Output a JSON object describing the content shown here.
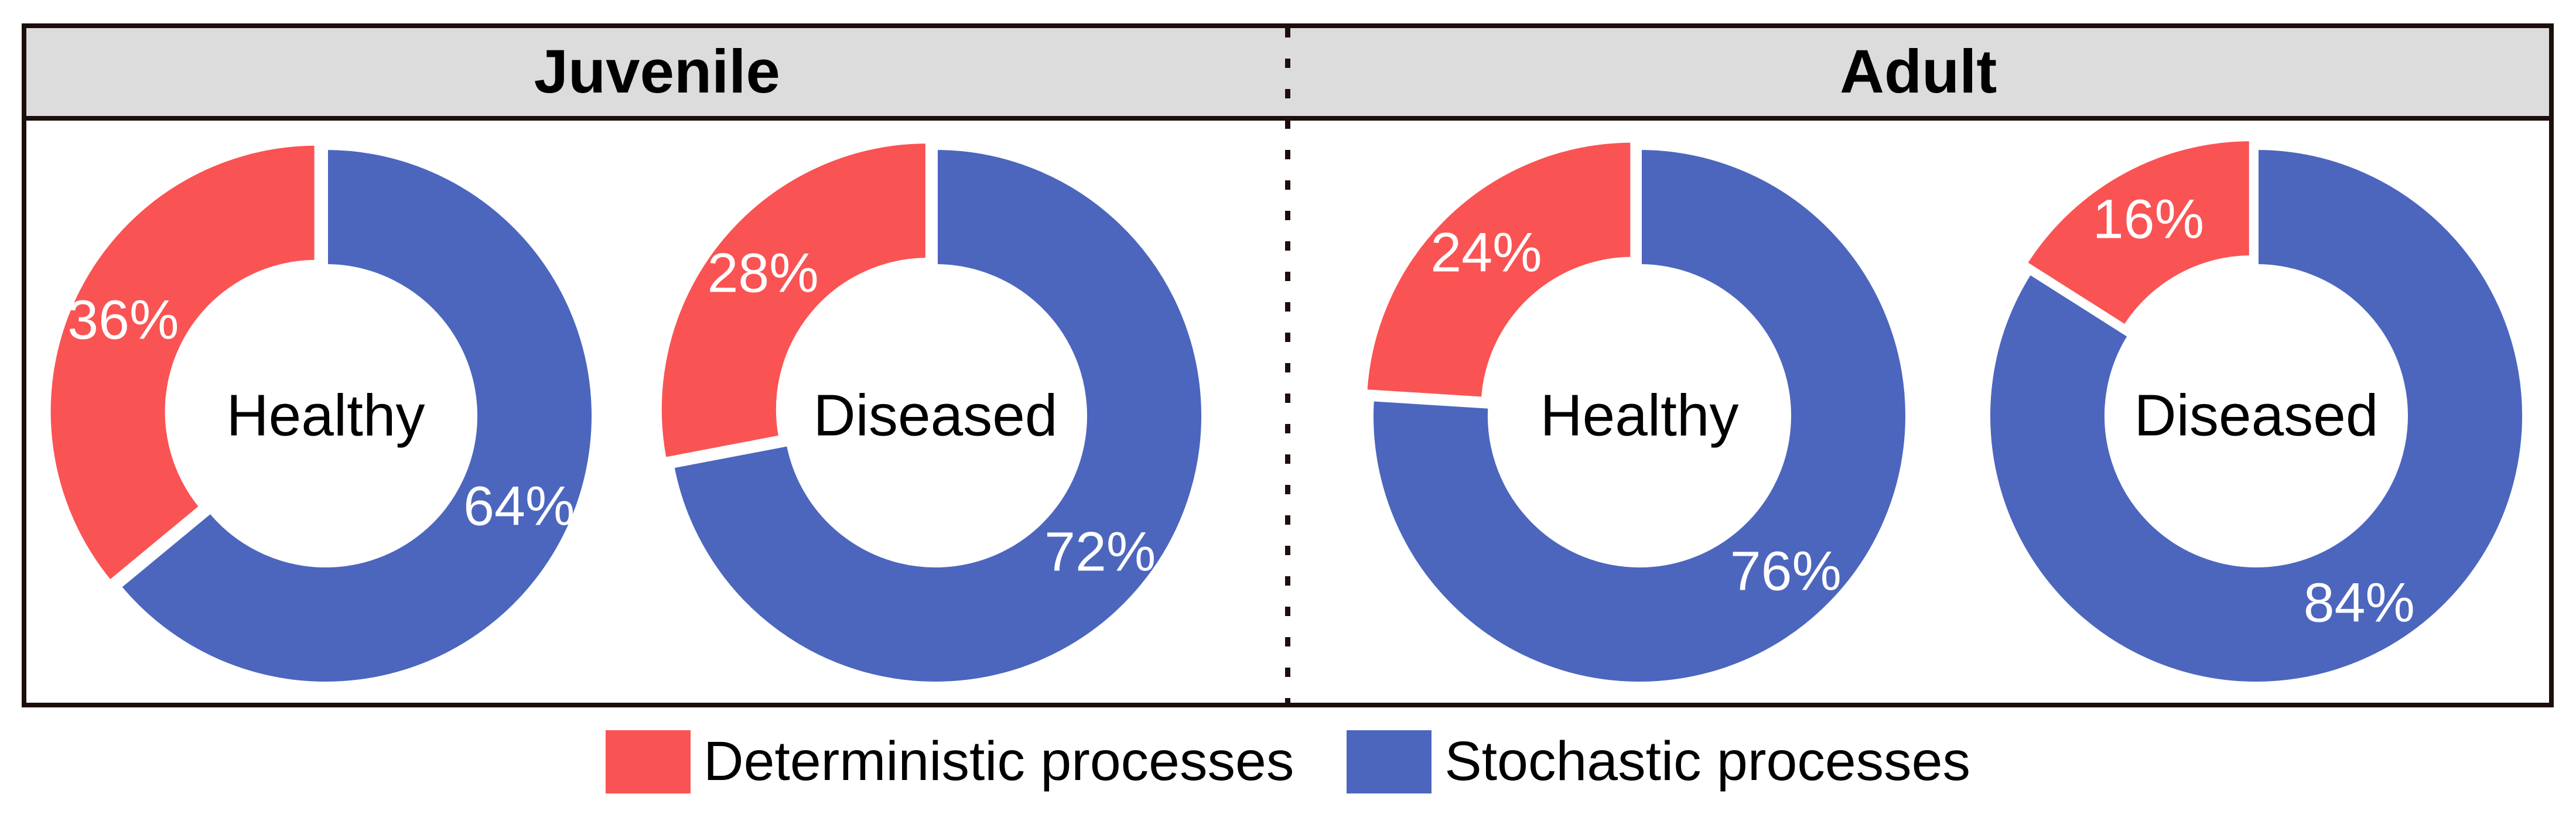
{
  "header": {
    "groups": [
      {
        "label": "Juvenile"
      },
      {
        "label": "Adult"
      }
    ]
  },
  "legend": {
    "items": [
      {
        "label": "Deterministic processes",
        "color": "#FA5353"
      },
      {
        "label": "Stochastic processes",
        "color": "#4C66BE"
      }
    ]
  },
  "chart_data": {
    "type": "pie",
    "subtype": "faceted-donut",
    "title": "",
    "facet_groups": [
      "Juvenile",
      "Adult"
    ],
    "series_names": [
      "Deterministic processes",
      "Stochastic processes"
    ],
    "colors": {
      "deterministic": "#FA5353",
      "stochastic": "#4C66BE"
    },
    "layout": {
      "start_at_top": true,
      "clockwise": true,
      "slice_gap_white": true,
      "red_slice_exploded": true
    },
    "facets": [
      {
        "group": "Juvenile",
        "center_label": "Healthy",
        "det": 36,
        "sto": 64,
        "det_pct": "36%",
        "sto_pct": "64%"
      },
      {
        "group": "Juvenile",
        "center_label": "Diseased",
        "det": 28,
        "sto": 72,
        "det_pct": "28%",
        "sto_pct": "72%"
      },
      {
        "group": "Adult",
        "center_label": "Healthy",
        "det": 24,
        "sto": 76,
        "det_pct": "24%",
        "sto_pct": "76%"
      },
      {
        "group": "Adult",
        "center_label": "Diseased",
        "det": 16,
        "sto": 84,
        "det_pct": "16%",
        "sto_pct": "84%"
      }
    ]
  }
}
